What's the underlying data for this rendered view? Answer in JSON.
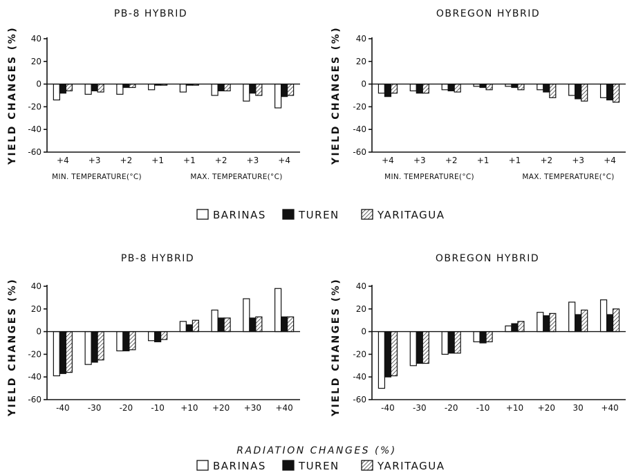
{
  "legend": {
    "items": [
      {
        "label": "BARINAS",
        "pattern": "empty"
      },
      {
        "label": "TUREN",
        "pattern": "solid"
      },
      {
        "label": "YARITAGUA",
        "pattern": "hatched"
      }
    ]
  },
  "bottom_caption": "RADIATION  CHANGES  (%)",
  "chart_data": [
    {
      "type": "bar",
      "title": "PB-8  HYBRID",
      "ylabel": "YIELD CHANGES (%)",
      "ylim": [
        -60,
        40
      ],
      "yticks": [
        "40",
        "20",
        "0",
        "-20",
        "-40",
        "-60"
      ],
      "categories": [
        "+4",
        "+3",
        "+2",
        "+1",
        "+1",
        "+2",
        "+3",
        "+4"
      ],
      "group_labels": [
        "MIN. TEMPERATURE(°C)",
        "MAX. TEMPERATURE(°C)"
      ],
      "series": [
        {
          "name": "BARINAS",
          "values": [
            -14,
            -9,
            -9,
            -5,
            -7,
            -10,
            -15,
            -21
          ]
        },
        {
          "name": "TUREN",
          "values": [
            -8,
            -6,
            -3,
            -1,
            -1,
            -6,
            -8,
            -11
          ]
        },
        {
          "name": "YARITAGUA",
          "values": [
            -6,
            -7,
            -3,
            -1,
            -1,
            -6,
            -10,
            -10
          ]
        }
      ]
    },
    {
      "type": "bar",
      "title": "OBREGON  HYBRID",
      "ylabel": "YIELD CHANGES (%)",
      "ylim": [
        -60,
        40
      ],
      "yticks": [
        "40",
        "20",
        "0",
        "-20",
        "-40",
        "-60"
      ],
      "categories": [
        "+4",
        "+3",
        "+2",
        "+1",
        "+1",
        "+2",
        "+3",
        "+4"
      ],
      "group_labels": [
        "MIN. TEMPERATURE(°C)",
        "MAX. TEMPERATURE(°C)"
      ],
      "series": [
        {
          "name": "BARINAS",
          "values": [
            -8,
            -6,
            -5,
            -2,
            -2,
            -5,
            -10,
            -12
          ]
        },
        {
          "name": "TUREN",
          "values": [
            -11,
            -8,
            -6,
            -3,
            -3,
            -7,
            -13,
            -14
          ]
        },
        {
          "name": "YARITAGUA",
          "values": [
            -8,
            -8,
            -7,
            -5,
            -5,
            -12,
            -15,
            -16
          ]
        }
      ]
    },
    {
      "type": "bar",
      "title": "PB-8  HYBRID",
      "ylabel": "YIELD CHANGES (%)",
      "ylim": [
        -60,
        40
      ],
      "yticks": [
        "40",
        "20",
        "0",
        "-20",
        "-40",
        "-60"
      ],
      "categories": [
        "-40",
        "-30",
        "-20",
        "-10",
        "+10",
        "+20",
        "+30",
        "+40"
      ],
      "series": [
        {
          "name": "BARINAS",
          "values": [
            -39,
            -29,
            -17,
            -8,
            9,
            19,
            29,
            38
          ]
        },
        {
          "name": "TUREN",
          "values": [
            -37,
            -27,
            -17,
            -9,
            6,
            12,
            12,
            13
          ]
        },
        {
          "name": "YARITAGUA",
          "values": [
            -36,
            -25,
            -16,
            -7,
            10,
            12,
            13,
            13
          ]
        }
      ]
    },
    {
      "type": "bar",
      "title": "OBREGON  HYBRID",
      "ylabel": "YIELD CHANGES (%)",
      "ylim": [
        -60,
        40
      ],
      "yticks": [
        "40",
        "20",
        "0",
        "-20",
        "-40",
        "-60"
      ],
      "categories": [
        "-40",
        "-30",
        "-20",
        "-10",
        "+10",
        "+20",
        "30",
        "+40"
      ],
      "series": [
        {
          "name": "BARINAS",
          "values": [
            -50,
            -30,
            -20,
            -9,
            5,
            17,
            26,
            28
          ]
        },
        {
          "name": "TUREN",
          "values": [
            -40,
            -28,
            -19,
            -10,
            7,
            14,
            15,
            15
          ]
        },
        {
          "name": "YARITAGUA",
          "values": [
            -39,
            -28,
            -19,
            -9,
            9,
            16,
            19,
            20
          ]
        }
      ]
    }
  ]
}
